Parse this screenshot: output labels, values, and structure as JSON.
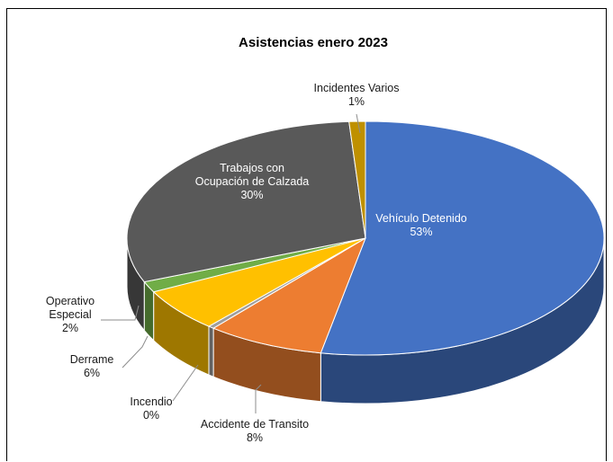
{
  "chart_data": {
    "type": "pie",
    "style": "3d",
    "title": "Asistencias enero 2023",
    "slices": [
      {
        "label": "Vehículo Detenido",
        "percent_label": "53%",
        "value": 53,
        "color": "#4472C4",
        "label_style": "inside"
      },
      {
        "label": "Accidente de Transito",
        "percent_label": "8%",
        "value": 8,
        "color": "#ED7D31",
        "label_style": "leader"
      },
      {
        "label": "Incendio",
        "percent_label": "0%",
        "value": 0.4,
        "color": "#9E9E9E",
        "label_style": "leader"
      },
      {
        "label": "Derrame",
        "percent_label": "6%",
        "value": 6,
        "color": "#FFC000",
        "label_style": "leader"
      },
      {
        "label": "Operativo Especial",
        "label_lines": [
          "Operativo",
          "Especial"
        ],
        "percent_label": "2%",
        "value": 1.5,
        "color": "#70AD47",
        "label_style": "leader"
      },
      {
        "label": "Trabajos con Ocupación de Calzada",
        "label_lines": [
          "Trabajos con",
          "Ocupación de Calzada"
        ],
        "percent_label": "30%",
        "value": 30,
        "color": "#595959",
        "label_style": "inside"
      },
      {
        "label": "Incidentes Varios",
        "percent_label": "1%",
        "value": 1.1,
        "color": "#BF9000",
        "label_style": "leader"
      }
    ],
    "legend": "none"
  }
}
